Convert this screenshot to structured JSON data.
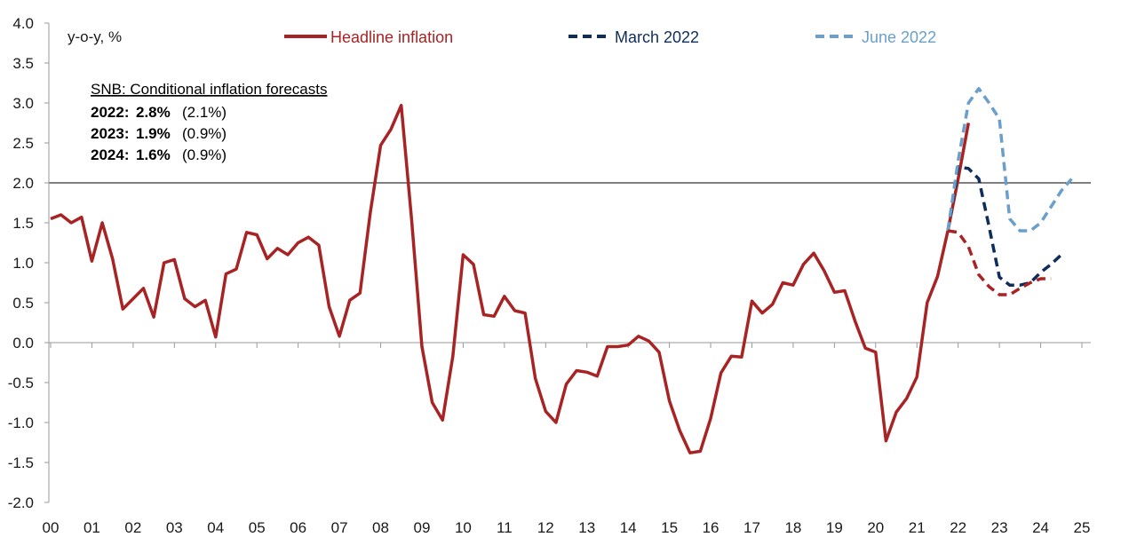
{
  "chart_data": {
    "type": "line",
    "ylabel": "y-o-y, %",
    "ylim": [
      -2.0,
      4.0
    ],
    "y_ticks": [
      "4.0",
      "3.5",
      "3.0",
      "2.5",
      "2.0",
      "1.5",
      "1.0",
      "0.5",
      "0.0",
      "-0.5",
      "-1.0",
      "-1.5",
      "-2.0"
    ],
    "x_ticks": [
      "00",
      "01",
      "02",
      "03",
      "04",
      "05",
      "06",
      "07",
      "08",
      "09",
      "10",
      "11",
      "12",
      "13",
      "14",
      "15",
      "16",
      "17",
      "18",
      "19",
      "20",
      "21",
      "22",
      "23",
      "24",
      "25"
    ],
    "x_range": [
      2000,
      2025
    ],
    "reference_line": 2.0,
    "legend": [
      {
        "name": "Headline inflation",
        "color": "#a82424",
        "style": "solid"
      },
      {
        "name": "March 2022",
        "color": "#0f2d5a",
        "style": "dashed"
      },
      {
        "name": "June 2022",
        "color": "#6a9fcb",
        "style": "dashed"
      }
    ],
    "annotation": {
      "title": "SNB: Conditional inflation forecasts",
      "rows": [
        {
          "year": "2022:",
          "value": "2.8%",
          "prev": "(2.1%)"
        },
        {
          "year": "2023:",
          "value": "1.9%",
          "prev": "(0.9%)"
        },
        {
          "year": "2024:",
          "value": "1.6%",
          "prev": "(0.9%)"
        }
      ]
    },
    "series": [
      {
        "name": "Headline inflation",
        "color": "#a82424",
        "style": "solid",
        "points": [
          [
            2000.0,
            1.55
          ],
          [
            2000.25,
            1.6
          ],
          [
            2000.5,
            1.5
          ],
          [
            2000.75,
            1.57
          ],
          [
            2001.0,
            1.02
          ],
          [
            2001.25,
            1.5
          ],
          [
            2001.5,
            1.05
          ],
          [
            2001.75,
            0.42
          ],
          [
            2002.0,
            0.55
          ],
          [
            2002.25,
            0.68
          ],
          [
            2002.5,
            0.32
          ],
          [
            2002.75,
            1.0
          ],
          [
            2003.0,
            1.04
          ],
          [
            2003.25,
            0.55
          ],
          [
            2003.5,
            0.45
          ],
          [
            2003.75,
            0.53
          ],
          [
            2004.0,
            0.07
          ],
          [
            2004.25,
            0.86
          ],
          [
            2004.5,
            0.92
          ],
          [
            2004.75,
            1.38
          ],
          [
            2005.0,
            1.35
          ],
          [
            2005.25,
            1.05
          ],
          [
            2005.5,
            1.18
          ],
          [
            2005.75,
            1.1
          ],
          [
            2006.0,
            1.25
          ],
          [
            2006.25,
            1.32
          ],
          [
            2006.5,
            1.22
          ],
          [
            2006.75,
            0.45
          ],
          [
            2007.0,
            0.08
          ],
          [
            2007.25,
            0.53
          ],
          [
            2007.5,
            0.62
          ],
          [
            2007.75,
            1.63
          ],
          [
            2008.0,
            2.47
          ],
          [
            2008.25,
            2.67
          ],
          [
            2008.5,
            2.97
          ],
          [
            2008.75,
            1.55
          ],
          [
            2009.0,
            -0.05
          ],
          [
            2009.25,
            -0.75
          ],
          [
            2009.5,
            -0.97
          ],
          [
            2009.75,
            -0.17
          ],
          [
            2010.0,
            1.1
          ],
          [
            2010.25,
            0.98
          ],
          [
            2010.5,
            0.35
          ],
          [
            2010.75,
            0.33
          ],
          [
            2011.0,
            0.58
          ],
          [
            2011.25,
            0.4
          ],
          [
            2011.5,
            0.37
          ],
          [
            2011.75,
            -0.45
          ],
          [
            2012.0,
            -0.86
          ],
          [
            2012.25,
            -1.0
          ],
          [
            2012.5,
            -0.52
          ],
          [
            2012.75,
            -0.35
          ],
          [
            2013.0,
            -0.37
          ],
          [
            2013.25,
            -0.42
          ],
          [
            2013.5,
            -0.05
          ],
          [
            2013.75,
            -0.05
          ],
          [
            2014.0,
            -0.03
          ],
          [
            2014.25,
            0.08
          ],
          [
            2014.5,
            0.02
          ],
          [
            2014.75,
            -0.12
          ],
          [
            2015.0,
            -0.73
          ],
          [
            2015.25,
            -1.1
          ],
          [
            2015.5,
            -1.38
          ],
          [
            2015.75,
            -1.36
          ],
          [
            2016.0,
            -0.95
          ],
          [
            2016.25,
            -0.38
          ],
          [
            2016.5,
            -0.17
          ],
          [
            2016.75,
            -0.18
          ],
          [
            2017.0,
            0.52
          ],
          [
            2017.25,
            0.37
          ],
          [
            2017.5,
            0.48
          ],
          [
            2017.75,
            0.75
          ],
          [
            2018.0,
            0.72
          ],
          [
            2018.25,
            0.98
          ],
          [
            2018.5,
            1.12
          ],
          [
            2018.75,
            0.9
          ],
          [
            2019.0,
            0.63
          ],
          [
            2019.25,
            0.65
          ],
          [
            2019.5,
            0.27
          ],
          [
            2019.75,
            -0.07
          ],
          [
            2020.0,
            -0.12
          ],
          [
            2020.25,
            -1.23
          ],
          [
            2020.5,
            -0.87
          ],
          [
            2020.75,
            -0.7
          ],
          [
            2021.0,
            -0.43
          ],
          [
            2021.25,
            0.5
          ],
          [
            2021.5,
            0.83
          ],
          [
            2021.75,
            1.4
          ],
          [
            2022.0,
            2.05
          ],
          [
            2022.25,
            2.75
          ]
        ]
      },
      {
        "name": "March 2022",
        "color": "#0f2d5a",
        "style": "dashed",
        "points": [
          [
            2021.75,
            1.4
          ],
          [
            2022.0,
            2.2
          ],
          [
            2022.25,
            2.18
          ],
          [
            2022.5,
            2.05
          ],
          [
            2022.75,
            1.45
          ],
          [
            2023.0,
            0.82
          ],
          [
            2023.25,
            0.72
          ],
          [
            2023.5,
            0.72
          ],
          [
            2023.75,
            0.75
          ],
          [
            2024.0,
            0.88
          ],
          [
            2024.25,
            0.98
          ],
          [
            2024.5,
            1.1
          ]
        ]
      },
      {
        "name": "June 2022",
        "color": "#6a9fcb",
        "style": "dashed",
        "points": [
          [
            2021.75,
            1.4
          ],
          [
            2022.0,
            2.28
          ],
          [
            2022.25,
            3.0
          ],
          [
            2022.5,
            3.18
          ],
          [
            2022.75,
            3.0
          ],
          [
            2023.0,
            2.8
          ],
          [
            2023.25,
            1.55
          ],
          [
            2023.5,
            1.4
          ],
          [
            2023.75,
            1.4
          ],
          [
            2024.0,
            1.5
          ],
          [
            2024.25,
            1.7
          ],
          [
            2024.5,
            1.9
          ],
          [
            2024.75,
            2.05
          ]
        ]
      },
      {
        "name": "",
        "color": "#a82424",
        "style": "dashed",
        "points": [
          [
            2021.75,
            1.4
          ],
          [
            2022.0,
            1.38
          ],
          [
            2022.25,
            1.2
          ],
          [
            2022.5,
            0.85
          ],
          [
            2022.75,
            0.7
          ],
          [
            2023.0,
            0.6
          ],
          [
            2023.25,
            0.6
          ],
          [
            2023.5,
            0.68
          ],
          [
            2023.75,
            0.75
          ],
          [
            2024.0,
            0.8
          ],
          [
            2024.25,
            0.8
          ]
        ]
      }
    ]
  }
}
